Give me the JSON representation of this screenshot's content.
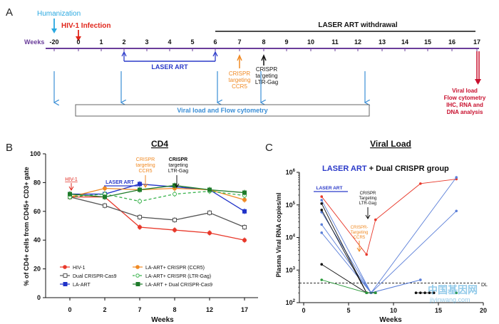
{
  "panelA": {
    "label": "A",
    "humanization": "Humanization",
    "infection": "HIV-1 Infection",
    "withdrawal": "LASER ART withdrawal",
    "weeks_label": "Weeks",
    "week_ticks": [
      "-20",
      "0",
      "1",
      "2",
      "3",
      "4",
      "5",
      "6",
      "7",
      "8",
      "9",
      "10",
      "11",
      "12",
      "13",
      "14",
      "15",
      "16",
      "17"
    ],
    "laser_art": "LASER ART",
    "crispr_ccr5": [
      "CRISPR",
      "targeting",
      "CCR5"
    ],
    "crispr_ltr": [
      "CRISPR",
      "targeting",
      "LTR-Gag"
    ],
    "viral_flow": "Viral load and Flow cytometry",
    "endpoint": [
      "Viral load",
      "Flow cytometry",
      "IHC, RNA and",
      "DNA analysis"
    ],
    "colors": {
      "humanization": "#29a8e0",
      "infection": "#e0261b",
      "timeline": "#6a3d9a",
      "laser": "#2b3ac9",
      "ccr5": "#f08a24",
      "crispr_ltr": "#111111",
      "endpoint": "#c8102e",
      "sample_arrow": "#3a8ed6"
    }
  },
  "panelB": {
    "label": "B",
    "title": "CD4",
    "ylabel": "% of CD4+ cells from CD45+ CD3+ gate",
    "xlabel": "Weeks",
    "ann_hiv": "HIV-1",
    "ann_laser": "LASER ART",
    "ann_ccr5": [
      "CRISPR",
      "targeting",
      "CCR5"
    ],
    "ann_ltr": [
      "CRISPR",
      "targeting",
      "LTR-Gag"
    ],
    "legend": [
      "HIV-1",
      "LA-ART+ CRISPR (CCR5)",
      "Dual CRISPR-Cas9",
      "LA-ART+ CRISPR (LTR-Gag)",
      "LA-ART",
      "LA-ART + Dual CRISPR-Cas9"
    ]
  },
  "panelC": {
    "label": "C",
    "title": "Viral Load",
    "subtitle_a": "LASER ART",
    "subtitle_b": " + Dual CRISPR group",
    "ylabel": "Plasma Viral RNA copies/ml",
    "xlabel": "Weeks",
    "ann_laser": "LASER ART",
    "ann_ltr": [
      "CRISPR",
      "Targeting",
      "LTR-Gag"
    ],
    "ann_ccr5": [
      "CRISPR-",
      "Targeting",
      "CCR5"
    ],
    "dl_label": "DL"
  },
  "watermark": {
    "cn": "中国基因网",
    "url": "jiyinwang.com"
  },
  "chart_data": [
    {
      "type": "line",
      "title": "CD4",
      "xlabel": "Weeks",
      "ylabel": "% of CD4+ cells from CD45+ CD3+ gate",
      "categories": [
        "0",
        "2",
        "7",
        "8",
        "12",
        "17"
      ],
      "ylim": [
        0,
        100
      ],
      "series": [
        {
          "name": "HIV-1",
          "color": "#e8382a",
          "marker": "dot",
          "values": [
            70,
            70,
            49,
            47,
            45,
            40
          ]
        },
        {
          "name": "Dual CRISPR-Cas9",
          "color": "#555555",
          "marker": "open-square",
          "values": [
            70,
            64,
            56,
            54,
            59,
            49
          ]
        },
        {
          "name": "LA-ART",
          "color": "#2032c8",
          "marker": "square",
          "values": [
            72,
            72,
            79,
            77,
            75,
            60
          ]
        },
        {
          "name": "LA-ART+ CRISPR (CCR5)",
          "color": "#f08a24",
          "marker": "dot",
          "values": [
            70,
            76,
            75,
            76,
            75,
            68
          ]
        },
        {
          "name": "LA-ART+ CRISPR (LTR-Gag)",
          "color": "#37b24a",
          "marker": "open-dot",
          "dashed": true,
          "values": [
            70,
            72,
            67,
            72,
            74,
            71
          ]
        },
        {
          "name": "LA-ART + Dual CRISPR-Cas9",
          "color": "#1e7b2a",
          "marker": "square",
          "values": [
            72,
            70,
            75,
            78,
            75,
            73
          ]
        }
      ]
    },
    {
      "type": "scatter",
      "title": "Viral Load",
      "xlabel": "Weeks",
      "ylabel": "Plasma Viral RNA copies/ml",
      "xlim": [
        0,
        20
      ],
      "ylim": [
        100,
        1000000
      ],
      "yscale": "log",
      "detection_limit": 400,
      "series": [
        {
          "color": "#e8382a",
          "points": [
            [
              2,
              180000
            ],
            [
              7,
              3000
            ],
            [
              8,
              35000
            ],
            [
              13,
              450000
            ],
            [
              17,
              620000
            ]
          ]
        },
        {
          "color": "#5b7fd8",
          "points": [
            [
              2,
              140000
            ],
            [
              7.5,
              200
            ],
            [
              17,
              700000
            ]
          ]
        },
        {
          "color": "#5b7fd8",
          "points": [
            [
              2,
              60000
            ],
            [
              7.5,
              200
            ],
            [
              17,
              65000
            ]
          ]
        },
        {
          "color": "#5b7fd8",
          "points": [
            [
              2,
              25000
            ],
            [
              7.5,
              200
            ],
            [
              13,
              500
            ]
          ]
        },
        {
          "color": "#5b7fd8",
          "points": [
            [
              2,
              14000
            ],
            [
              7.5,
              200
            ],
            [
              13,
              500
            ]
          ]
        },
        {
          "color": "#111111",
          "points": [
            [
              2,
              110000
            ],
            [
              7,
              200
            ],
            [
              8,
              200
            ]
          ]
        },
        {
          "color": "#111111",
          "points": [
            [
              2,
              70000
            ],
            [
              7,
              200
            ],
            [
              8,
              200
            ]
          ]
        },
        {
          "color": "#111111",
          "points": [
            [
              2,
              1500
            ],
            [
              7,
              200
            ],
            [
              8,
              200
            ]
          ]
        },
        {
          "color": "#2a9a3a",
          "points": [
            [
              2,
              500
            ],
            [
              7,
              200
            ],
            [
              8,
              200
            ]
          ]
        },
        {
          "color": "#111111",
          "points": [
            [
              12.5,
              200
            ],
            [
              13,
              200
            ],
            [
              13.5,
              200
            ],
            [
              14,
              200
            ],
            [
              14.5,
              200
            ]
          ]
        },
        {
          "color": "#2a9a3a",
          "points": [
            [
              17,
              200
            ]
          ]
        }
      ]
    }
  ]
}
